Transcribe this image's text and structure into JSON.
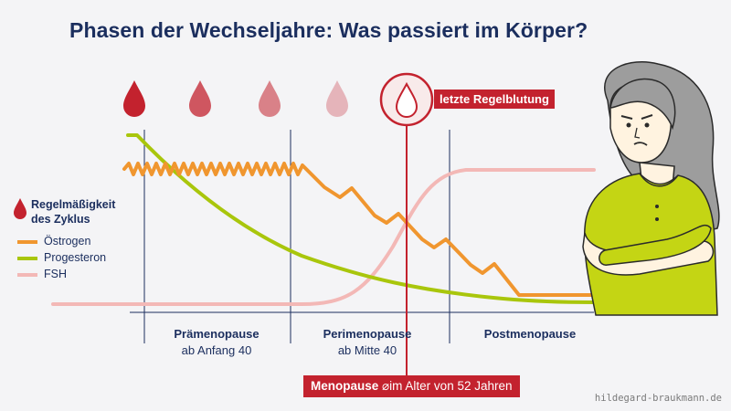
{
  "title": "Phasen der Wechseljahre: Was passiert im Körper?",
  "legend": {
    "cycle_label": "Regelmäßigkeit des Zyklus",
    "estrogen": "Östrogen",
    "progesterone": "Progesteron",
    "fsh": "FSH"
  },
  "colors": {
    "title": "#1b2e5e",
    "estrogen": "#f0962f",
    "progesterone": "#a9c60c",
    "fsh": "#f3b8b6",
    "accent_red": "#c3222e",
    "grid": "#1b2e5e"
  },
  "drops": {
    "count": 4,
    "opacity_levels": [
      1.0,
      0.75,
      0.5,
      0.25
    ],
    "icon": "blood-drop-icon"
  },
  "last_period_label": "letzte Regelblutung",
  "phases": [
    {
      "name": "Prämenopause",
      "sub": "ab Anfang 40"
    },
    {
      "name": "Perimenopause",
      "sub": "ab Mitte 40"
    },
    {
      "name": "Postmenopause",
      "sub": ""
    }
  ],
  "menopause": {
    "label_bold": "Menopause",
    "symbol": "⌀",
    "label_rest": "im Alter von 52 Jahren"
  },
  "credit": "hildegard-braukmann.de"
}
